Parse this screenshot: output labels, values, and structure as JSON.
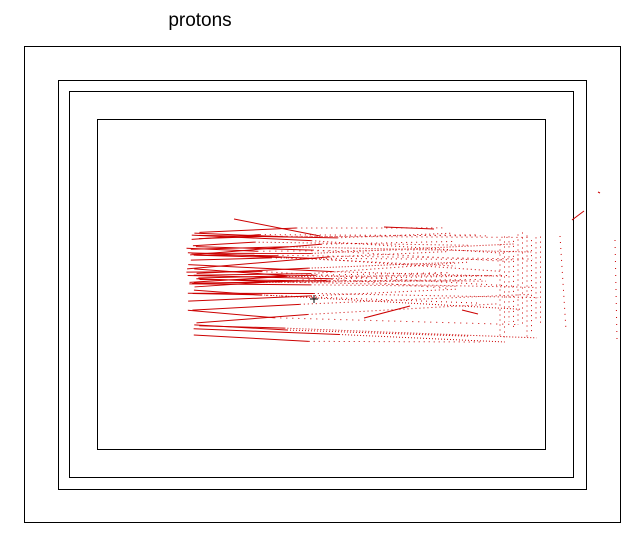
{
  "title": "protons",
  "colors": {
    "track": "#cc0000",
    "frame": "#000000",
    "background": "#ffffff"
  }
}
